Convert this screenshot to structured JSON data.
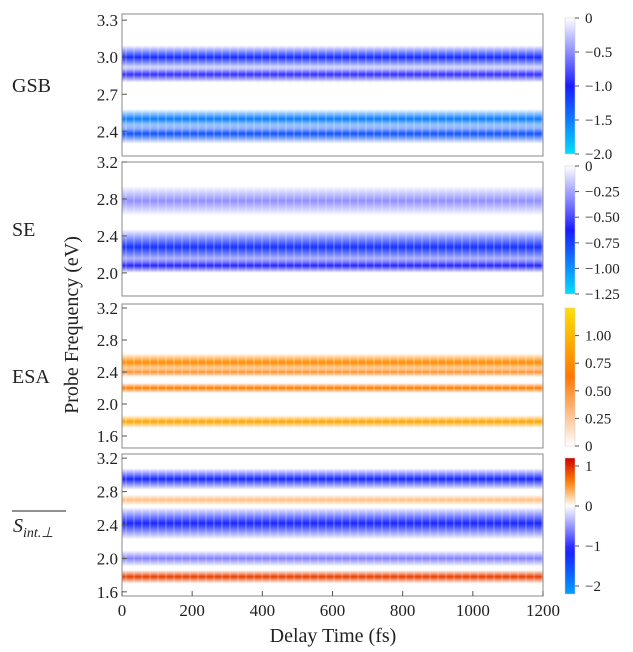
{
  "chart_data": {
    "type": "heatmap",
    "xlabel": "Delay Time (fs)",
    "ylabel": "Probe Frequency (eV)",
    "x_ticks": [
      0,
      200,
      400,
      600,
      800,
      1000,
      1200
    ],
    "xlim": [
      0,
      1200
    ],
    "panels": [
      {
        "label": "GSB",
        "ylim": [
          2.2,
          3.35
        ],
        "y_ticks": [
          2.4,
          2.7,
          3.0,
          3.3
        ],
        "colorbar": {
          "range": [
            -2.0,
            0
          ],
          "ticks": [
            "0",
            "−0.5",
            "−1.0",
            "−1.5",
            "−2.0"
          ],
          "tick_values": [
            0,
            -0.5,
            -1.0,
            -1.5,
            -2.0
          ],
          "colors": [
            "#ffffff",
            "#1a1aff",
            "#00e0ff"
          ]
        },
        "bands": [
          {
            "center_eV": 3.0,
            "width_eV": 0.06,
            "value": -1.1
          },
          {
            "center_eV": 2.86,
            "width_eV": 0.04,
            "value": -0.9
          },
          {
            "center_eV": 2.5,
            "width_eV": 0.05,
            "value": -1.5
          },
          {
            "center_eV": 2.38,
            "width_eV": 0.05,
            "value": -1.3
          }
        ]
      },
      {
        "label": "SE",
        "ylim": [
          1.75,
          3.2
        ],
        "y_ticks": [
          2.0,
          2.4,
          2.8,
          3.2
        ],
        "colorbar": {
          "range": [
            -1.25,
            0
          ],
          "ticks": [
            "0",
            "−0.25",
            "−0.50",
            "−0.75",
            "−1.00",
            "−1.25"
          ],
          "tick_values": [
            0,
            -0.25,
            -0.5,
            -0.75,
            -1.0,
            -1.25
          ],
          "colors": [
            "#ffffff",
            "#1a1aff",
            "#00e0ff"
          ]
        },
        "bands": [
          {
            "center_eV": 2.78,
            "width_eV": 0.1,
            "value": -0.3
          },
          {
            "center_eV": 2.28,
            "width_eV": 0.12,
            "value": -0.7
          },
          {
            "center_eV": 2.08,
            "width_eV": 0.05,
            "value": -0.6
          }
        ]
      },
      {
        "label": "ESA",
        "ylim": [
          1.45,
          3.25
        ],
        "y_ticks": [
          1.6,
          2.0,
          2.4,
          2.8,
          3.2
        ],
        "colorbar": {
          "range": [
            0,
            1.25
          ],
          "ticks": [
            "0",
            "0.25",
            "0.50",
            "0.75",
            "1.00"
          ],
          "tick_values": [
            0,
            0.25,
            0.5,
            0.75,
            1.0
          ],
          "colors": [
            "#ffffff",
            "#ff7700",
            "#ffe000"
          ]
        },
        "bands": [
          {
            "center_eV": 2.52,
            "width_eV": 0.07,
            "value": 0.75
          },
          {
            "center_eV": 2.4,
            "width_eV": 0.04,
            "value": 0.5
          },
          {
            "center_eV": 2.2,
            "width_eV": 0.04,
            "value": 0.65
          },
          {
            "center_eV": 1.78,
            "width_eV": 0.05,
            "value": 0.9
          }
        ]
      },
      {
        "label": "S int.⊥",
        "ylim": [
          1.55,
          3.25
        ],
        "y_ticks": [
          1.6,
          2.0,
          2.4,
          2.8,
          3.2
        ],
        "colorbar": {
          "range": [
            -2.2,
            1.2
          ],
          "ticks": [
            "1",
            "0",
            "−1",
            "−2"
          ],
          "tick_values": [
            1,
            0,
            -1,
            -2
          ],
          "colors_neg": [
            "#ffffff",
            "#1a1aff",
            "#00a0ff"
          ],
          "colors_pos": [
            "#ffffff",
            "#ff8000",
            "#d00000"
          ]
        },
        "bands": [
          {
            "center_eV": 2.95,
            "width_eV": 0.08,
            "value": -1.2
          },
          {
            "center_eV": 2.7,
            "width_eV": 0.04,
            "value": 0.3
          },
          {
            "center_eV": 2.42,
            "width_eV": 0.12,
            "value": -1.2
          },
          {
            "center_eV": 2.0,
            "width_eV": 0.06,
            "value": -0.6
          },
          {
            "center_eV": 1.78,
            "width_eV": 0.05,
            "value": 0.9
          }
        ]
      }
    ]
  }
}
